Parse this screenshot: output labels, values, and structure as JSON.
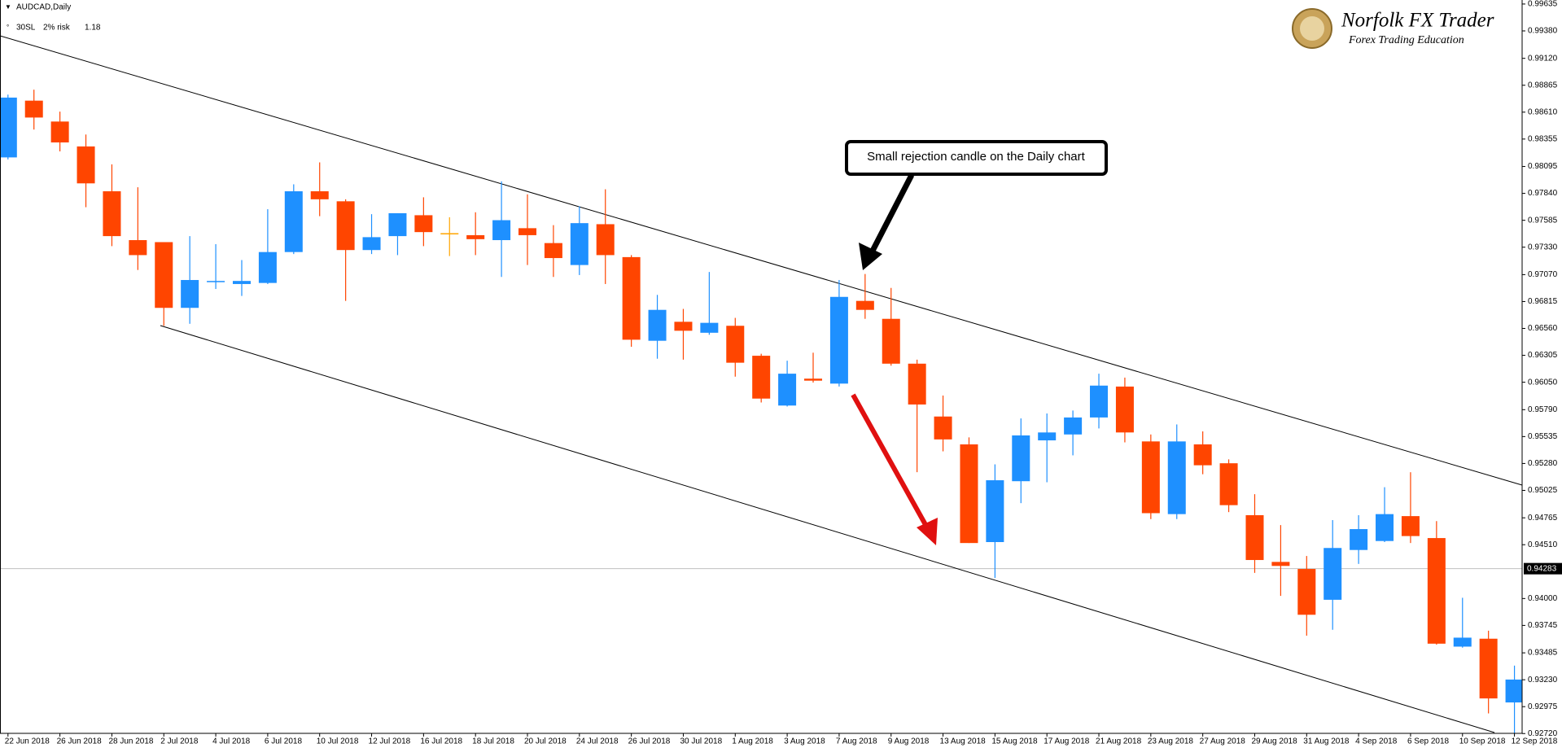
{
  "chart_data": {
    "type": "candlestick",
    "title": "AUDCAD,Daily",
    "indicators": [
      "30SL",
      "2% risk",
      "1.18"
    ],
    "annotation": "Small rejection candle on the Daily chart",
    "categories": [
      "22 Jun 2018",
      null,
      "26 Jun 2018",
      null,
      "28 Jun 2018",
      null,
      "2 Jul 2018",
      null,
      "4 Jul 2018",
      null,
      "6 Jul 2018",
      null,
      "10 Jul 2018",
      null,
      "12 Jul 2018",
      null,
      "16 Jul 2018",
      null,
      "18 Jul 2018",
      null,
      "20 Jul 2018",
      null,
      "24 Jul 2018",
      null,
      "26 Jul 2018",
      null,
      "30 Jul 2018",
      null,
      "1 Aug 2018",
      null,
      "3 Aug 2018",
      null,
      "7 Aug 2018",
      null,
      "9 Aug 2018",
      null,
      "13 Aug 2018",
      null,
      "15 Aug 2018",
      null,
      "17 Aug 2018",
      null,
      "21 Aug 2018",
      null,
      "23 Aug 2018",
      null,
      "27 Aug 2018",
      null,
      "29 Aug 2018",
      null,
      "31 Aug 2018",
      null,
      "4 Sep 2018",
      null,
      "6 Sep 2018",
      null,
      "10 Sep 2018",
      null,
      "12 Sep 2018"
    ],
    "open": [
      0.98181,
      0.98719,
      0.98521,
      0.98285,
      0.9786,
      0.97397,
      0.97378,
      0.96755,
      0.97,
      0.96981,
      0.96991,
      0.97284,
      0.9786,
      0.97765,
      0.97303,
      0.97435,
      0.97633,
      0.97463,
      0.97444,
      0.97397,
      0.9751,
      0.97369,
      0.97161,
      0.97548,
      0.97236,
      0.96443,
      0.96623,
      0.96519,
      0.96585,
      0.96301,
      0.95829,
      0.96084,
      0.96037,
      0.96821,
      0.96651,
      0.96226,
      0.95725,
      0.95461,
      0.94535,
      0.95112,
      0.95499,
      0.95555,
      0.95716,
      0.96009,
      0.95489,
      0.948,
      0.95461,
      0.95282,
      0.9479,
      0.94347,
      0.9428,
      0.93988,
      0.9446,
      0.94545,
      0.94781,
      0.94573,
      0.93544,
      0.93619,
      0.93015
    ],
    "high": [
      0.98776,
      0.98823,
      0.98615,
      0.98398,
      0.98115,
      0.97898,
      0.97378,
      0.97435,
      0.97359,
      0.97208,
      0.9769,
      0.97926,
      0.98134,
      0.97784,
      0.97643,
      0.97652,
      0.97803,
      0.97614,
      0.97661,
      0.97954,
      0.97831,
      0.97539,
      0.97718,
      0.97879,
      0.97255,
      0.96878,
      0.96745,
      0.97095,
      0.9666,
      0.9632,
      0.96254,
      0.9633,
      0.97019,
      0.97076,
      0.96944,
      0.96264,
      0.95924,
      0.95527,
      0.95272,
      0.95707,
      0.95754,
      0.95782,
      0.96131,
      0.96094,
      0.95555,
      0.9565,
      0.95584,
      0.95319,
      0.94989,
      0.94696,
      0.94403,
      0.94743,
      0.9479,
      0.95055,
      0.95197,
      0.94734,
      0.94007,
      0.93695,
      0.93364
    ],
    "low": [
      0.98162,
      0.98445,
      0.98238,
      0.97709,
      0.9734,
      0.97114,
      0.96585,
      0.96604,
      0.96934,
      0.96868,
      0.96981,
      0.97265,
      0.97624,
      0.96821,
      0.97265,
      0.97255,
      0.9734,
      0.97246,
      0.97255,
      0.97048,
      0.97161,
      0.97048,
      0.97066,
      0.96981,
      0.96386,
      0.96273,
      0.96264,
      0.965,
      0.96103,
      0.95858,
      0.9582,
      0.96047,
      0.96009,
      0.96651,
      0.96207,
      0.95197,
      0.95395,
      0.94526,
      0.94195,
      0.94904,
      0.95102,
      0.95357,
      0.95612,
      0.9548,
      0.94753,
      0.94753,
      0.95178,
      0.94819,
      0.94243,
      0.94025,
      0.93648,
      0.93704,
      0.94328,
      0.94535,
      0.94526,
      0.93563,
      0.93534,
      0.92911,
      0.92684
    ],
    "close": [
      0.98748,
      0.98559,
      0.98323,
      0.97935,
      0.97435,
      0.97255,
      0.96755,
      0.97019,
      0.9701,
      0.9701,
      0.97284,
      0.9786,
      0.97784,
      0.97303,
      0.97425,
      0.97652,
      0.97473,
      0.97463,
      0.97406,
      0.97586,
      0.97444,
      0.97227,
      0.97558,
      0.97255,
      0.96453,
      0.96736,
      0.96538,
      0.96613,
      0.96235,
      0.95895,
      0.96131,
      0.96065,
      0.96859,
      0.96736,
      0.96226,
      0.95839,
      0.95508,
      0.94526,
      0.95121,
      0.95546,
      0.95574,
      0.95716,
      0.96018,
      0.95574,
      0.94809,
      0.95489,
      0.95263,
      0.94885,
      0.94365,
      0.94309,
      0.93846,
      0.94479,
      0.94658,
      0.948,
      0.94592,
      0.93572,
      0.93629,
      0.93053,
      0.93232
    ],
    "up_color": "#1e90ff",
    "down_color": "#ff4500",
    "doji_color": "#ffa500",
    "ylim": [
      0.92722,
      0.99673
    ],
    "yticks": [
      0.99635,
      {
        "value": 0.9938,
        "label": "0.99380"
      },
      {
        "value": 0.9912,
        "label": "0.99120"
      },
      0.98865,
      {
        "value": 0.9861,
        "label": "0.98610"
      },
      0.98355,
      0.98095,
      {
        "value": 0.9784,
        "label": "0.97840"
      },
      0.97585,
      {
        "value": 0.9733,
        "label": "0.97330"
      },
      {
        "value": 0.9707,
        "label": "0.97070"
      },
      0.96815,
      {
        "value": 0.9656,
        "label": "0.96560"
      },
      0.96305,
      {
        "value": 0.9605,
        "label": "0.96050"
      },
      {
        "value": 0.9579,
        "label": "0.95790"
      },
      0.95535,
      {
        "value": 0.9528,
        "label": "0.95280"
      },
      0.95025,
      0.94765,
      {
        "value": 0.9451,
        "label": "0.94510"
      },
      {
        "value": 0.94,
        "label": "0.94000"
      },
      0.93745,
      0.93485,
      {
        "value": 0.9323,
        "label": "0.93230"
      },
      0.92975,
      {
        "value": 0.9272,
        "label": "0.92720"
      }
    ],
    "current_price": 0.94283
  },
  "logo": {
    "title": "Norfolk FX Trader",
    "subtitle": "Forex Trading Education"
  }
}
